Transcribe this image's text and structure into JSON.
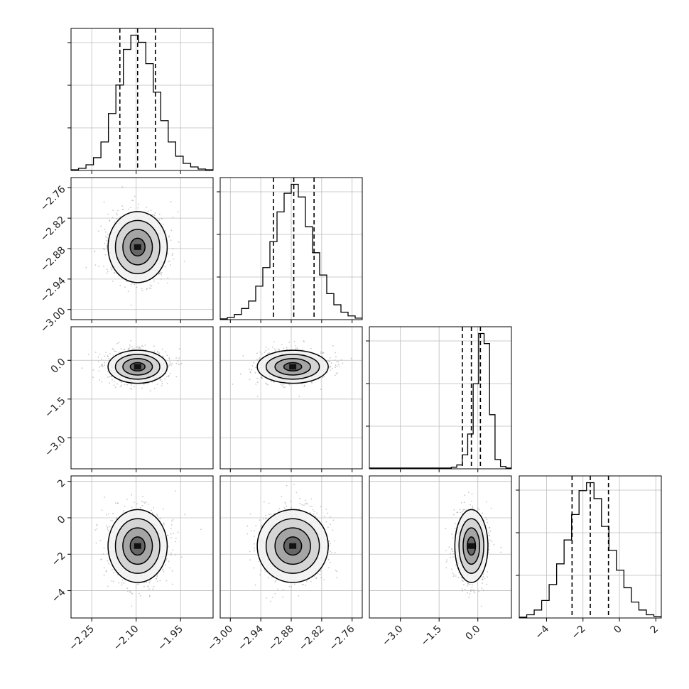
{
  "chart_data": {
    "type": "corner",
    "grid": true,
    "parameters": [
      {
        "range": [
          -2.32,
          -1.84
        ],
        "ticks": [
          -2.25,
          -2.1,
          -1.95
        ],
        "tick_labels": [
          "−2.25",
          "−2.10",
          "−1.95"
        ],
        "quantiles": [
          -2.155,
          -2.095,
          -2.035
        ],
        "mean": -2.095,
        "sd": 0.05
      },
      {
        "range": [
          -3.02,
          -2.74
        ],
        "ticks": [
          -3.0,
          -2.94,
          -2.88,
          -2.82,
          -2.76
        ],
        "tick_labels": [
          "−3.00",
          "−2.94",
          "−2.88",
          "−2.82",
          "−2.76"
        ],
        "quantiles": [
          -2.915,
          -2.875,
          -2.835
        ],
        "mean": -2.877,
        "sd": 0.035
      },
      {
        "range": [
          -4.2,
          1.3
        ],
        "ticks": [
          -3.0,
          -1.5,
          0.0
        ],
        "tick_labels": [
          "−3.0",
          "−1.5",
          "0.0"
        ],
        "quantiles": [
          -0.6,
          -0.25,
          0.1
        ],
        "mean": -0.25,
        "sd": 0.32
      },
      {
        "range": [
          -5.5,
          2.3
        ],
        "ticks": [
          -4,
          -2,
          0,
          2
        ],
        "tick_labels": [
          "−4",
          "−2",
          "0",
          "2"
        ],
        "quantiles": [
          -2.6,
          -1.6,
          -0.6
        ],
        "mean": -1.55,
        "sd": 1.0
      }
    ],
    "histograms": [
      [
        1,
        3,
        8,
        18,
        40,
        80,
        120,
        170,
        190,
        180,
        150,
        110,
        70,
        40,
        20,
        10,
        5,
        2,
        1
      ],
      [
        1,
        3,
        7,
        15,
        25,
        45,
        70,
        105,
        145,
        170,
        182,
        165,
        125,
        90,
        60,
        35,
        20,
        10,
        5,
        2
      ],
      [
        1,
        1,
        1,
        1,
        1,
        1,
        1,
        1,
        1,
        1,
        1,
        1,
        1,
        1,
        1,
        2,
        5,
        18,
        45,
        110,
        175,
        162,
        70,
        12,
        3,
        1
      ],
      [
        1,
        4,
        10,
        22,
        42,
        68,
        98,
        130,
        160,
        170,
        150,
        115,
        85,
        60,
        38,
        20,
        10,
        4,
        2
      ]
    ],
    "contour_levels_sigma": [
      0.5,
      1.0,
      1.5,
      2.0
    ]
  }
}
